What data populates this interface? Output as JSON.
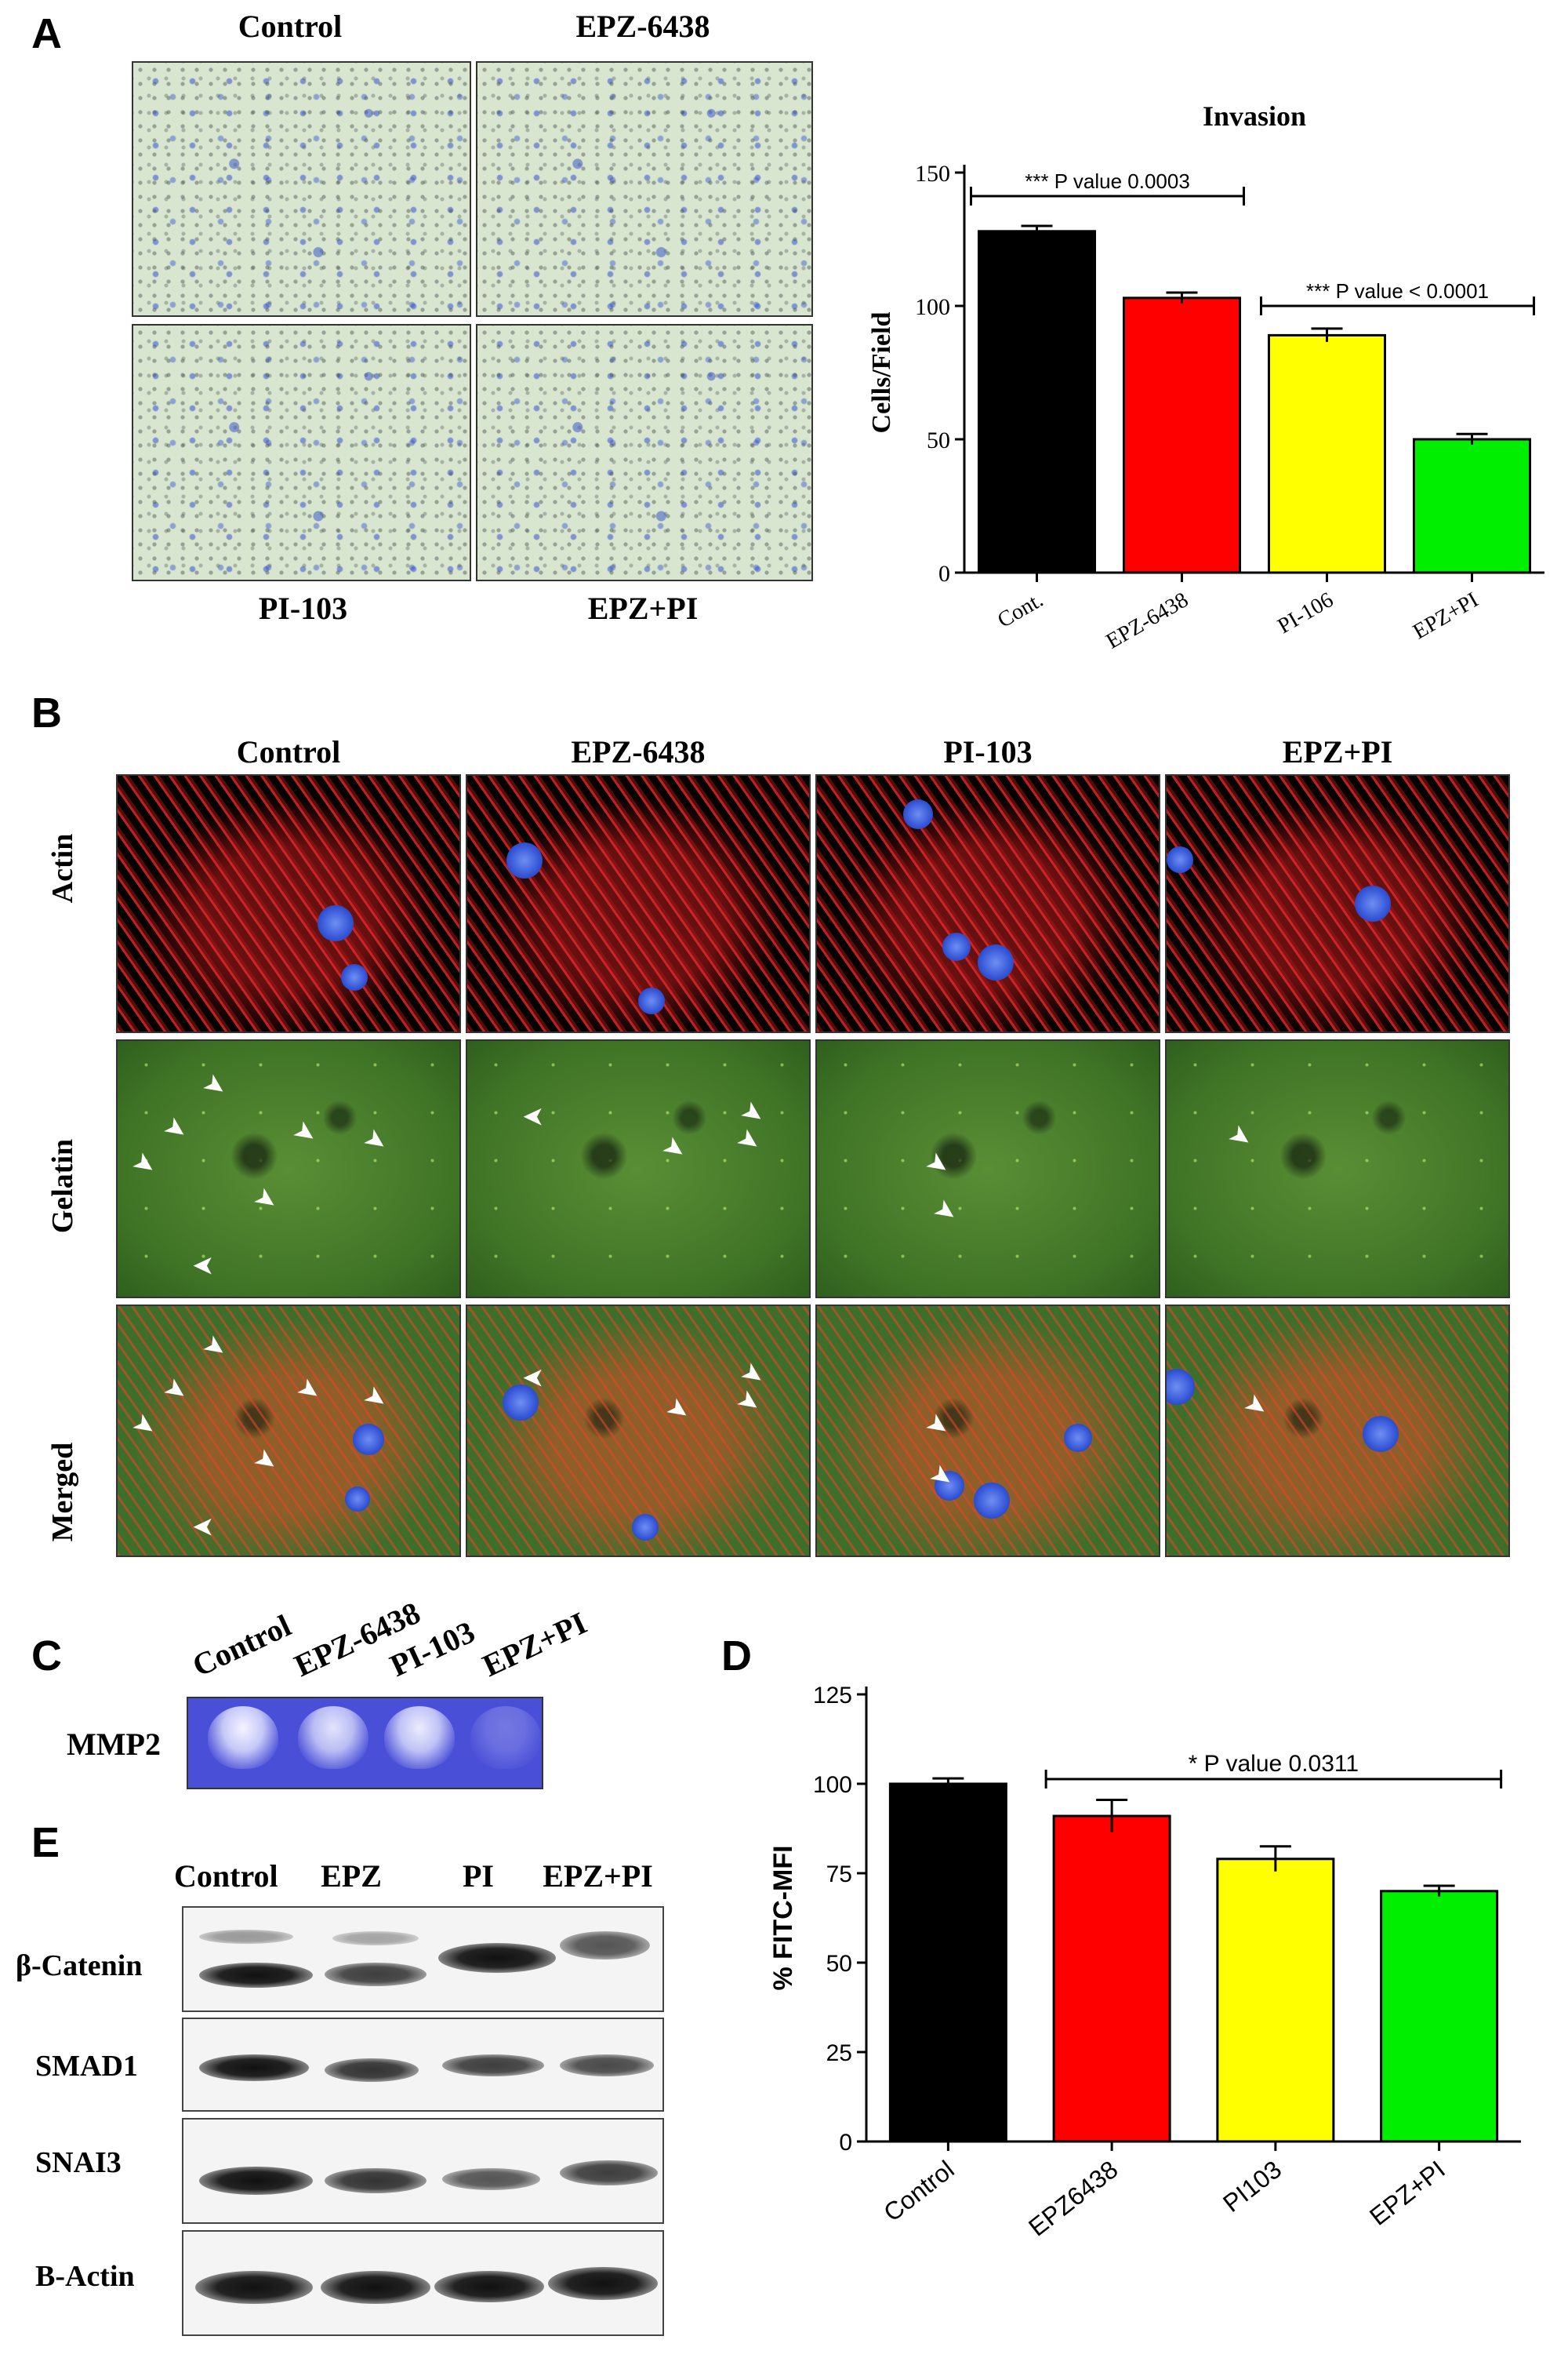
{
  "panel_labels": {
    "A": "A",
    "B": "B",
    "C": "C",
    "D": "D",
    "E": "E"
  },
  "panelA": {
    "micrograph_labels": [
      "Control",
      "EPZ-6438",
      "PI-103",
      "EPZ+PI"
    ]
  },
  "panelB": {
    "column_labels": [
      "Control",
      "EPZ-6438",
      "PI-103",
      "EPZ+PI"
    ],
    "row_labels": [
      "Actin",
      "Gelatin",
      "Merged"
    ]
  },
  "panelC": {
    "lane_labels": [
      "Control",
      "EPZ-6438",
      "PI-103",
      "EPZ+PI"
    ],
    "row_label": "MMP2",
    "band_intensity": [
      1,
      0.9,
      0.95,
      0.25
    ]
  },
  "panelE": {
    "lane_labels": [
      "Control",
      "EPZ",
      "PI",
      "EPZ+PI"
    ],
    "row_labels": [
      "β-Catenin",
      "SMAD1",
      "SNAI3",
      "B-Actin"
    ]
  },
  "chart_data": [
    {
      "id": "A",
      "type": "bar",
      "title": "Invasion",
      "ylabel": "Cells/Field",
      "xlabel": "",
      "categories": [
        "Cont.",
        "EPZ-6438",
        "PI-106",
        "EPZ+PI"
      ],
      "values": [
        128,
        103,
        89,
        50
      ],
      "errors": [
        2,
        2,
        2.5,
        2
      ],
      "colors": [
        "#000000",
        "#ff0000",
        "#ffff00",
        "#00ee00"
      ],
      "ylim": [
        0,
        150
      ],
      "yticks": [
        0,
        50,
        100,
        150
      ],
      "annotations": [
        {
          "text": "*** P value 0.0003",
          "from": 0,
          "to": 1
        },
        {
          "text": "*** P value < 0.0001",
          "from": 2,
          "to": 3
        }
      ],
      "grid": false
    },
    {
      "id": "D",
      "type": "bar",
      "title": "",
      "ylabel": "% FITC-MFI",
      "xlabel": "",
      "categories": [
        "Control",
        "EPZ6438",
        "PI103",
        "EPZ+PI"
      ],
      "values": [
        100,
        91,
        79,
        70
      ],
      "errors": [
        1.5,
        4.5,
        3.5,
        1.5
      ],
      "colors": [
        "#000000",
        "#ff0000",
        "#ffff00",
        "#00ee00"
      ],
      "ylim": [
        0,
        125
      ],
      "yticks": [
        0,
        25,
        50,
        75,
        100,
        125
      ],
      "annotations": [
        {
          "text": "* P value 0.0311",
          "from": 1,
          "to": 3
        }
      ],
      "grid": false
    }
  ]
}
